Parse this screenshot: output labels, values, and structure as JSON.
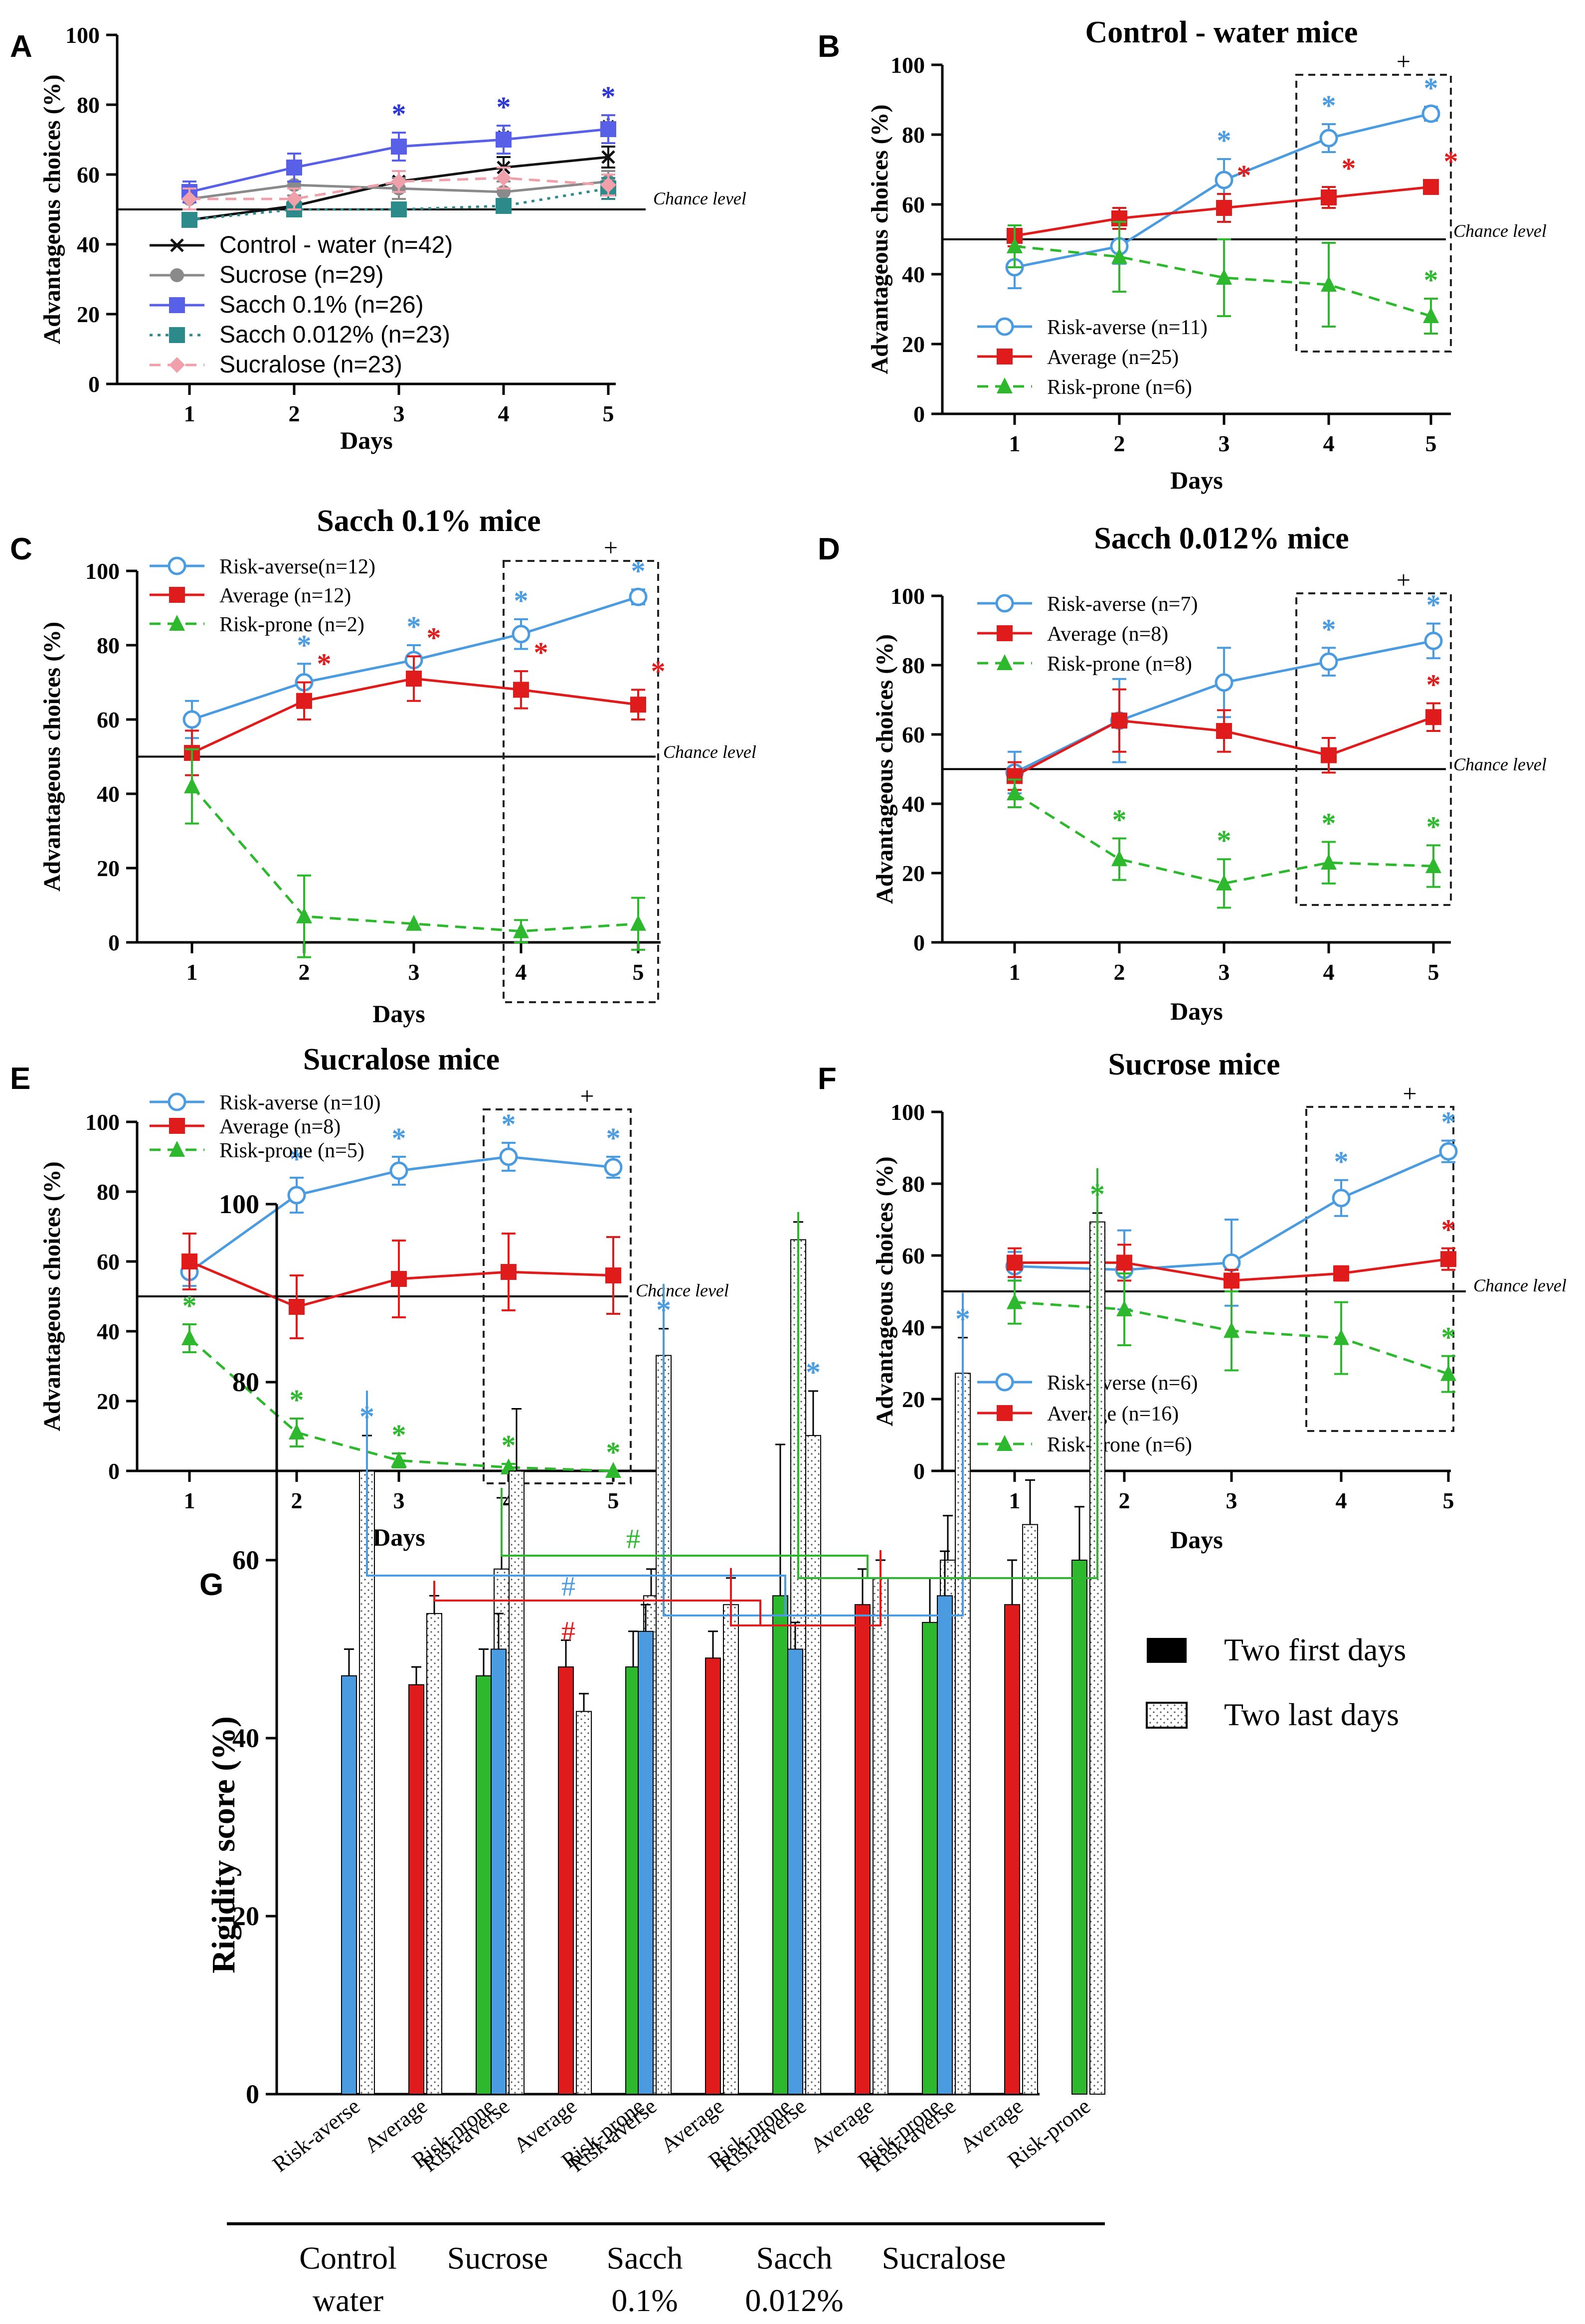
{
  "colors": {
    "blue": "#4a9be0",
    "red": "#e01b1b",
    "green": "#2db82d",
    "black": "#111111",
    "gray": "#8a8a8a",
    "violet": "#5860e8",
    "teal": "#2c8a8a",
    "pink": "#f0a0aa",
    "blueA": "#2c35d6"
  },
  "chart_data": [
    {
      "id": "A",
      "panel_letter": "A",
      "type": "line",
      "title": "",
      "xlabel": "Days",
      "ylabel": "Advantageous choices (%)",
      "categories": [
        "1",
        "2",
        "3",
        "4",
        "5"
      ],
      "ylim": [
        0,
        100
      ],
      "yticks": [
        "0",
        "20",
        "40",
        "60",
        "80",
        "100"
      ],
      "chance_level": 50,
      "chance_label": "Chance level",
      "legend_position": "bottom-left",
      "series": [
        {
          "name": "Control - water (n=42)",
          "color": "#111111",
          "marker": "x",
          "dash": "solid",
          "values": [
            47,
            51,
            58,
            62,
            65
          ],
          "err": [
            2,
            2,
            3,
            3,
            3
          ],
          "sig": [
            "",
            "",
            "*",
            "*",
            "*"
          ],
          "sigColor": "#111111"
        },
        {
          "name": "Sucrose (n=29)",
          "color": "#8a8a8a",
          "marker": "circle",
          "dash": "solid",
          "values": [
            53,
            57,
            56,
            55,
            58
          ],
          "err": [
            3,
            3,
            3,
            3,
            3
          ],
          "sig": [
            "",
            "",
            "",
            "",
            ""
          ],
          "sigColor": "#8a8a8a"
        },
        {
          "name": "Sacch 0.1% (n=26)",
          "color": "#5860e8",
          "marker": "square",
          "dash": "solid",
          "values": [
            55,
            62,
            68,
            70,
            73
          ],
          "err": [
            3,
            4,
            4,
            4,
            4
          ],
          "sig": [
            "",
            "",
            "*",
            "*",
            "*"
          ],
          "sigColor": "#2c35d6"
        },
        {
          "name": "Sacch 0.012% (n=23)",
          "color": "#2c8a8a",
          "marker": "square",
          "dash": "dot",
          "values": [
            47,
            50,
            50,
            51,
            56
          ],
          "err": [
            2,
            2,
            2,
            2,
            3
          ],
          "sig": [
            "",
            "",
            "",
            "",
            ""
          ],
          "sigColor": "#2c8a8a"
        },
        {
          "name": "Sucralose (n=23)",
          "color": "#f0a0aa",
          "marker": "diamond",
          "dash": "dash",
          "values": [
            53,
            53,
            58,
            59,
            57
          ],
          "err": [
            3,
            3,
            3,
            3,
            3
          ],
          "sig": [
            "",
            "",
            "",
            "",
            ""
          ],
          "sigColor": "#f0a0aa"
        }
      ],
      "dashed_box": false
    },
    {
      "id": "B",
      "panel_letter": "B",
      "type": "line",
      "title": "Control - water mice",
      "xlabel": "Days",
      "ylabel": "Advantageous choices (%)",
      "categories": [
        "1",
        "2",
        "3",
        "4",
        "5"
      ],
      "ylim": [
        0,
        100
      ],
      "yticks": [
        "0",
        "20",
        "40",
        "60",
        "80",
        "100"
      ],
      "chance_level": 50,
      "chance_label": "Chance level",
      "legend_position": "bottom-left",
      "series": [
        {
          "name": "Risk-averse (n=11)",
          "color": "#4a9be0",
          "marker": "open-circle",
          "dash": "solid",
          "values": [
            42,
            48,
            67,
            79,
            86
          ],
          "err": [
            6,
            5,
            6,
            4,
            2
          ],
          "sig": [
            "",
            "",
            "*",
            "*",
            "*"
          ],
          "sigColor": "#4a9be0"
        },
        {
          "name": "Average (n=25)",
          "color": "#e01b1b",
          "marker": "square",
          "dash": "solid",
          "values": [
            51,
            56,
            59,
            62,
            65
          ],
          "err": [
            3,
            3,
            4,
            3,
            2
          ],
          "sig": [
            "",
            "",
            "*",
            "*",
            "*"
          ],
          "sigColor": "#e01b1b"
        },
        {
          "name": "Risk-prone (n=6)",
          "color": "#2db82d",
          "marker": "triangle",
          "dash": "dash",
          "values": [
            48,
            45,
            39,
            37,
            28
          ],
          "err": [
            6,
            10,
            11,
            12,
            5
          ],
          "sig": [
            "",
            "",
            "",
            "",
            "*"
          ],
          "sigColor": "#2db82d"
        }
      ],
      "dashed_box": true,
      "plus": "+"
    },
    {
      "id": "C",
      "panel_letter": "C",
      "type": "line",
      "title": "Sacch 0.1% mice",
      "xlabel": "Days",
      "ylabel": "Advantageous choices (%)",
      "categories": [
        "1",
        "2",
        "3",
        "4",
        "5"
      ],
      "ylim": [
        0,
        100
      ],
      "yticks": [
        "0",
        "20",
        "40",
        "60",
        "80",
        "100"
      ],
      "chance_level": 50,
      "chance_label": "Chance level",
      "legend_position": "top-left",
      "series": [
        {
          "name": "Risk-averse(n=12)",
          "color": "#4a9be0",
          "marker": "open-circle",
          "dash": "solid",
          "values": [
            60,
            70,
            76,
            83,
            93
          ],
          "err": [
            5,
            5,
            4,
            4,
            2
          ],
          "sig": [
            "",
            "*",
            "*",
            "*",
            "*"
          ],
          "sigColor": "#4a9be0"
        },
        {
          "name": "Average (n=12)",
          "color": "#e01b1b",
          "marker": "square",
          "dash": "solid",
          "values": [
            51,
            65,
            71,
            68,
            64
          ],
          "err": [
            6,
            5,
            6,
            5,
            4
          ],
          "sig": [
            "",
            "*",
            "*",
            "*",
            "*"
          ],
          "sigColor": "#e01b1b"
        },
        {
          "name": "Risk-prone (n=2)",
          "color": "#2db82d",
          "marker": "triangle",
          "dash": "dash",
          "values": [
            42,
            7,
            5,
            3,
            5
          ],
          "err": [
            10,
            11,
            0,
            3,
            7
          ],
          "sig": [
            "",
            "",
            "",
            "",
            ""
          ],
          "sigColor": "#2db82d"
        }
      ],
      "dashed_box": true,
      "plus": "+"
    },
    {
      "id": "D",
      "panel_letter": "D",
      "type": "line",
      "title": "Sacch 0.012% mice",
      "xlabel": "Days",
      "ylabel": "Advantageous choices (%)",
      "categories": [
        "1",
        "2",
        "3",
        "4",
        "5"
      ],
      "ylim": [
        0,
        100
      ],
      "yticks": [
        "0",
        "20",
        "40",
        "60",
        "80",
        "100"
      ],
      "chance_level": 50,
      "chance_label": "Chance level",
      "legend_position": "top-left",
      "series": [
        {
          "name": "Risk-averse (n=7)",
          "color": "#4a9be0",
          "marker": "open-circle",
          "dash": "solid",
          "values": [
            49,
            64,
            75,
            81,
            87
          ],
          "err": [
            6,
            12,
            10,
            4,
            5
          ],
          "sig": [
            "",
            "",
            "",
            "*",
            "*"
          ],
          "sigColor": "#4a9be0"
        },
        {
          "name": "Average (n=8)",
          "color": "#e01b1b",
          "marker": "square",
          "dash": "solid",
          "values": [
            48,
            64,
            61,
            54,
            65
          ],
          "err": [
            4,
            9,
            6,
            5,
            4
          ],
          "sig": [
            "",
            "",
            "",
            "",
            "*"
          ],
          "sigColor": "#e01b1b"
        },
        {
          "name": "Risk-prone (n=8)",
          "color": "#2db82d",
          "marker": "triangle",
          "dash": "dash",
          "values": [
            43,
            24,
            17,
            23,
            22
          ],
          "err": [
            4,
            6,
            7,
            6,
            6
          ],
          "sig": [
            "",
            "*",
            "*",
            "*",
            "*"
          ],
          "sigColor": "#2db82d"
        }
      ],
      "dashed_box": true,
      "plus": "+"
    },
    {
      "id": "E",
      "panel_letter": "E",
      "type": "line",
      "title": "Sucralose mice",
      "xlabel": "Days",
      "ylabel": "Advantageous choices (%)",
      "categories": [
        "1",
        "2",
        "3",
        "4",
        "5"
      ],
      "ylim": [
        0,
        100
      ],
      "yticks": [
        "0",
        "20",
        "40",
        "60",
        "80",
        "100"
      ],
      "chance_level": 50,
      "chance_label": "Chance level",
      "legend_position": "top-left",
      "series": [
        {
          "name": "Risk-averse (n=10)",
          "color": "#4a9be0",
          "marker": "open-circle",
          "dash": "solid",
          "values": [
            57,
            79,
            86,
            90,
            87
          ],
          "err": [
            4,
            5,
            4,
            4,
            3
          ],
          "sig": [
            "",
            "*",
            "*",
            "*",
            "*"
          ],
          "sigColor": "#4a9be0"
        },
        {
          "name": "Average (n=8)",
          "color": "#e01b1b",
          "marker": "square",
          "dash": "solid",
          "values": [
            60,
            47,
            55,
            57,
            56
          ],
          "err": [
            8,
            9,
            11,
            11,
            11
          ],
          "sig": [
            "",
            "",
            "",
            "",
            ""
          ],
          "sigColor": "#e01b1b"
        },
        {
          "name": "Risk-prone (n=5)",
          "color": "#2db82d",
          "marker": "triangle",
          "dash": "dash",
          "values": [
            38,
            11,
            3,
            1,
            0
          ],
          "err": [
            4,
            4,
            2,
            1,
            0
          ],
          "sig": [
            "*",
            "*",
            "*",
            "*",
            "*"
          ],
          "sigColor": "#2db82d"
        }
      ],
      "dashed_box": true,
      "plus": "+"
    },
    {
      "id": "F",
      "panel_letter": "F",
      "type": "line",
      "title": "Sucrose mice",
      "xlabel": "Days",
      "ylabel": "Advantageous choices (%)",
      "categories": [
        "1",
        "2",
        "3",
        "4",
        "5"
      ],
      "ylim": [
        0,
        100
      ],
      "yticks": [
        "0",
        "20",
        "40",
        "60",
        "80",
        "100"
      ],
      "chance_level": 50,
      "chance_label": "Chance level",
      "legend_position": "bottom-left",
      "series": [
        {
          "name": "Risk-averse (n=6)",
          "color": "#4a9be0",
          "marker": "open-circle",
          "dash": "solid",
          "values": [
            57,
            56,
            58,
            76,
            89
          ],
          "err": [
            4,
            11,
            12,
            5,
            3
          ],
          "sig": [
            "",
            "",
            "",
            "*",
            "*"
          ],
          "sigColor": "#4a9be0"
        },
        {
          "name": "Average (n=16)",
          "color": "#e01b1b",
          "marker": "square",
          "dash": "solid",
          "values": [
            58,
            58,
            53,
            55,
            59
          ],
          "err": [
            4,
            5,
            3,
            2,
            3
          ],
          "sig": [
            "",
            "",
            "",
            "",
            "*"
          ],
          "sigColor": "#e01b1b"
        },
        {
          "name": "Risk-prone (n=6)",
          "color": "#2db82d",
          "marker": "triangle",
          "dash": "dash",
          "values": [
            47,
            45,
            39,
            37,
            27
          ],
          "err": [
            6,
            10,
            11,
            10,
            5
          ],
          "sig": [
            "",
            "",
            "",
            "",
            "*"
          ],
          "sigColor": "#2db82d"
        }
      ],
      "dashed_box": true,
      "plus": "+"
    },
    {
      "id": "G",
      "panel_letter": "G",
      "type": "bar",
      "title": "",
      "ylabel": "Rigidity score (%)",
      "ylim": [
        0,
        100
      ],
      "yticks": [
        "0",
        "20",
        "40",
        "60",
        "80",
        "100"
      ],
      "legend": {
        "first": "Two first days",
        "last": "Two last days"
      },
      "phenotypes": [
        "Risk-averse",
        "Average",
        "Risk-prone"
      ],
      "groups": [
        {
          "name": "Control",
          "name2": "water",
          "first": [
            47,
            46,
            47
          ],
          "first_err": [
            3,
            2,
            3
          ],
          "last": [
            70,
            54,
            59
          ],
          "last_err": [
            4,
            2,
            8
          ],
          "sig": [
            "*",
            "",
            ""
          ]
        },
        {
          "name": "Sucrose",
          "name2": "",
          "first": [
            50,
            48,
            48
          ],
          "first_err": [
            4,
            3,
            4
          ],
          "last": [
            70,
            43,
            56
          ],
          "last_err": [
            7,
            2,
            3
          ],
          "sig": [
            "",
            "",
            ""
          ]
        },
        {
          "name": "Sacch",
          "name2": "0.1%",
          "first": [
            52,
            49,
            56
          ],
          "first_err": [
            3,
            3,
            17
          ],
          "last": [
            83,
            55,
            96
          ],
          "last_err": [
            3,
            3,
            2
          ],
          "sig": [
            "*",
            "",
            ""
          ]
        },
        {
          "name": "Sacch",
          "name2": "0.012%",
          "first": [
            50,
            55,
            53
          ],
          "first_err": [
            3,
            4,
            5
          ],
          "last": [
            74,
            58,
            60
          ],
          "last_err": [
            5,
            2,
            5
          ],
          "sig": [
            "*",
            "",
            ""
          ]
        },
        {
          "name": "Sucralose",
          "name2": "",
          "first": [
            56,
            55,
            60
          ],
          "first_err": [
            5,
            5,
            6
          ],
          "last": [
            81,
            64,
            98
          ],
          "last_err": [
            4,
            5,
            1
          ],
          "sig": [
            "*",
            "",
            "*"
          ]
        }
      ],
      "hash_symbol": "#"
    }
  ]
}
